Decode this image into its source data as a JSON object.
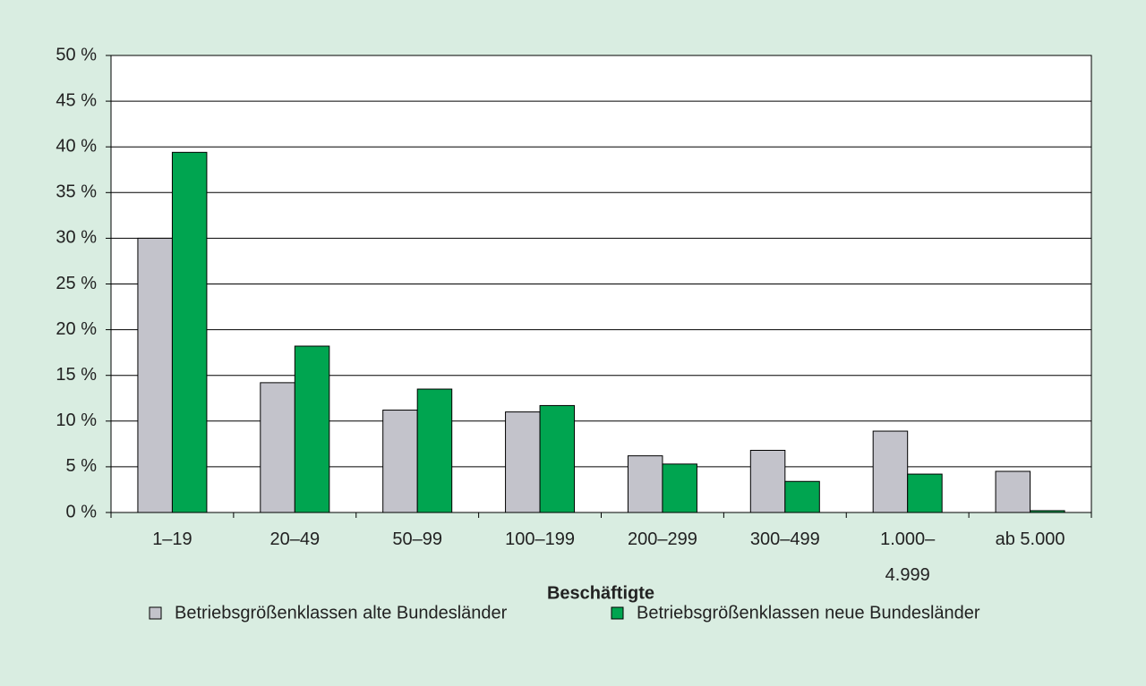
{
  "chart_data": {
    "type": "bar",
    "x_label": "Beschäftigte",
    "categories": [
      "1–19",
      "20–49",
      "50–99",
      "100–199",
      "200–299",
      "300–499",
      "1.000–\n4.999",
      "ab 5.000"
    ],
    "series": [
      {
        "name": "Betriebsgrößenklassen alte Bundesländer",
        "color": "#c3c3cb",
        "values": [
          30.0,
          14.2,
          11.2,
          11.0,
          6.2,
          6.8,
          8.9,
          4.5
        ]
      },
      {
        "name": "Betriebsgrößenklassen neue Bundesländer",
        "color": "#00a550",
        "values": [
          39.4,
          18.2,
          13.5,
          11.7,
          5.3,
          3.4,
          4.2,
          0.2
        ]
      }
    ],
    "ylim": [
      0,
      50
    ],
    "yticks": [
      {
        "value": 0,
        "label": "0 %"
      },
      {
        "value": 5,
        "label": "5 %"
      },
      {
        "value": 10,
        "label": "10 %"
      },
      {
        "value": 15,
        "label": "15 %"
      },
      {
        "value": 20,
        "label": "20 %"
      },
      {
        "value": 25,
        "label": "25 %"
      },
      {
        "value": 30,
        "label": "30 %"
      },
      {
        "value": 35,
        "label": "35 %"
      },
      {
        "value": 40,
        "label": "40 %"
      },
      {
        "value": 45,
        "label": "45 %"
      },
      {
        "value": 50,
        "label": "50 %"
      }
    ],
    "grid": true,
    "legend": "bottom"
  }
}
